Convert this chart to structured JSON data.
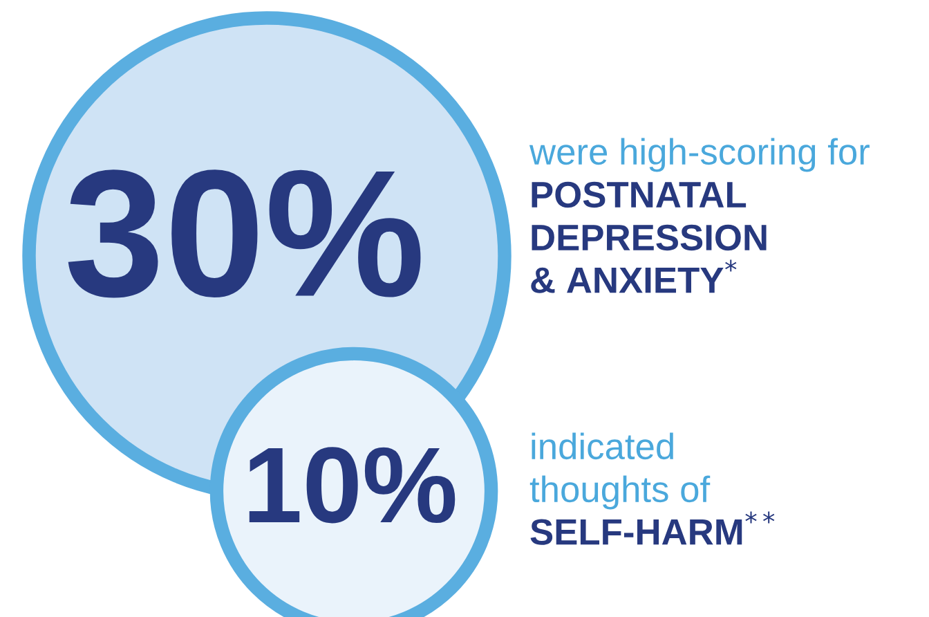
{
  "chart_data": {
    "type": "other",
    "categories": [
      "were high-scoring for\nPOSTNATAL\nDEPRESSION\n& ANXIETY$^{*}$",
      "indicated\nthoughts of\nSELF-HARM$^{**}$"
    ],
    "values": [
      30,
      10
    ],
    "value_labels": [
      "30%",
      "10%"
    ],
    "colors": [
      "#cfe3f5",
      "#eaf3fb"
    ]
  }
}
